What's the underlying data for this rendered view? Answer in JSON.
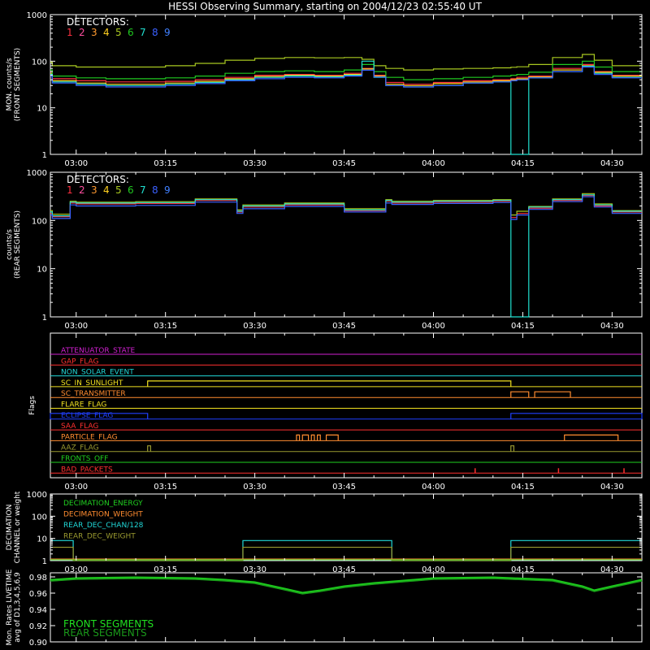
{
  "title": "HESSI Observing Summary, starting on 2004/12/23 02:55:40 UT",
  "time_ticks": [
    "03:00",
    "03:15",
    "03:30",
    "03:45",
    "04:00",
    "04:15",
    "04:30"
  ],
  "colors": {
    "det": [
      "#ff3040",
      "#ff4fa0",
      "#ff9a30",
      "#ffd020",
      "#a8c820",
      "#20c820",
      "#20e0d0",
      "#3a60ff",
      "#4080ff"
    ],
    "axis": "#ffffff"
  },
  "detector_panels": [
    {
      "ylabel1": "MON. counts/s",
      "ylabel2": "(FRONT SEGMENTS)",
      "legend_title": "DETECTORS:",
      "legend_digits": [
        "1",
        "2",
        "3",
        "4",
        "5",
        "6",
        "7",
        "8",
        "9"
      ],
      "yticks": [
        "1",
        "10",
        "100",
        "1000"
      ]
    },
    {
      "ylabel1": "counts/s",
      "ylabel2": "(REAR SEGMENTS)",
      "legend_title": "DETECTORS:",
      "legend_digits": [
        "1",
        "2",
        "3",
        "4",
        "5",
        "6",
        "7",
        "8",
        "9"
      ],
      "yticks": [
        "1",
        "10",
        "100",
        "1000"
      ]
    }
  ],
  "flags_panel": {
    "ylabel": "Flags",
    "flags": [
      {
        "label": "ATTENUATOR_STATE",
        "color": "#d020d0"
      },
      {
        "label": "GAP_FLAG",
        "color": "#ff3030"
      },
      {
        "label": "NON_SOLAR_EVENT",
        "color": "#20d8d8"
      },
      {
        "label": "SC_IN_SUNLIGHT",
        "color": "#f0e020"
      },
      {
        "label": "SC_TRANSMITTER",
        "color": "#ff8c30"
      },
      {
        "label": "FLARE_FLAG",
        "color": "#f0e020"
      },
      {
        "label": "ECLIPSE_FLAG",
        "color": "#2040ff"
      },
      {
        "label": "SAA_FLAG",
        "color": "#ff3030"
      },
      {
        "label": "PARTICLE_FLAG",
        "color": "#ff8c30"
      },
      {
        "label": "AAZ_FLAG",
        "color": "#9a9a30"
      },
      {
        "label": "FRONTS_OFF",
        "color": "#20d020"
      },
      {
        "label": "BAD_PACKETS",
        "color": "#ff3030"
      }
    ]
  },
  "decimation_panel": {
    "ylabel1": "DECIMATION",
    "ylabel2": "CHANNEL or weight",
    "yticks": [
      "1",
      "10",
      "100",
      "1000"
    ],
    "legend": [
      {
        "label": "DECIMATION_ENERGY",
        "color": "#20d020"
      },
      {
        "label": "DECIMATION_WEIGHT",
        "color": "#ff8c30"
      },
      {
        "label": "REAR_DEC_CHAN/128",
        "color": "#20d8d8"
      },
      {
        "label": "REAR_DEC_WEIGHT",
        "color": "#9a9a30"
      }
    ]
  },
  "livetime_panel": {
    "ylabel1": "Mon. Rates LIVETIME",
    "ylabel2": "avg of D1,3,4,5,6,9",
    "yticks": [
      "0.90",
      "0.92",
      "0.94",
      "0.96",
      "0.98"
    ],
    "legend": [
      {
        "label": "FRONT SEGMENTS",
        "color": "#20e020"
      },
      {
        "label": "REAR SEGMENTS",
        "color": "#1a9a1a"
      }
    ]
  },
  "chart_data": [
    {
      "type": "line",
      "title": "HESSI Observing Summary, starting on 2004/12/23 02:55:40 UT",
      "ylabel": "MON. counts/s (FRONT SEGMENTS)",
      "ylog": true,
      "ylim": [
        1,
        1000
      ],
      "xlim": [
        "02:55:40",
        "04:35:00"
      ],
      "x": [
        "02:56",
        "03:00",
        "03:05",
        "03:10",
        "03:15",
        "03:20",
        "03:25",
        "03:30",
        "03:35",
        "03:40",
        "03:45",
        "03:48",
        "03:50",
        "03:52",
        "03:55",
        "04:00",
        "04:05",
        "04:10",
        "04:13",
        "04:14",
        "04:16",
        "04:20",
        "04:25",
        "04:27",
        "04:30",
        "04:35"
      ],
      "series": [
        {
          "name": "1",
          "values": [
            60,
            42,
            38,
            36,
            36,
            37,
            40,
            45,
            50,
            52,
            50,
            55,
            70,
            50,
            35,
            32,
            35,
            38,
            40,
            42,
            45,
            48,
            70,
            85,
            60,
            50
          ]
        },
        {
          "name": "4",
          "values": [
            55,
            38,
            34,
            32,
            32,
            34,
            37,
            42,
            47,
            50,
            48,
            52,
            68,
            48,
            32,
            30,
            33,
            36,
            38,
            40,
            42,
            46,
            65,
            80,
            58,
            48
          ]
        },
        {
          "name": "5",
          "values": [
            95,
            80,
            75,
            75,
            75,
            80,
            90,
            105,
            115,
            120,
            118,
            120,
            110,
            80,
            70,
            65,
            68,
            70,
            72,
            74,
            76,
            85,
            120,
            140,
            105,
            80
          ]
        },
        {
          "name": "6",
          "values": [
            65,
            48,
            44,
            42,
            42,
            44,
            48,
            55,
            60,
            62,
            60,
            65,
            85,
            60,
            45,
            40,
            42,
            45,
            48,
            50,
            52,
            58,
            85,
            100,
            75,
            60
          ]
        },
        {
          "name": "7",
          "values": [
            52,
            36,
            32,
            30,
            30,
            32,
            35,
            40,
            45,
            48,
            46,
            50,
            100,
            45,
            30,
            28,
            30,
            34,
            36,
            1,
            1,
            44,
            60,
            78,
            55,
            45
          ]
        },
        {
          "name": "8",
          "values": [
            48,
            34,
            30,
            28,
            28,
            30,
            33,
            38,
            42,
            45,
            44,
            48,
            64,
            46,
            30,
            28,
            30,
            34,
            36,
            38,
            40,
            44,
            60,
            75,
            52,
            44
          ]
        }
      ]
    },
    {
      "type": "line",
      "ylabel": "counts/s (REAR SEGMENTS)",
      "ylog": true,
      "ylim": [
        1,
        1000
      ],
      "xlim": [
        "02:55:40",
        "04:35:00"
      ],
      "x": [
        "02:56",
        "02:59",
        "03:00",
        "03:10",
        "03:20",
        "03:27",
        "03:28",
        "03:35",
        "03:45",
        "03:52",
        "03:53",
        "04:00",
        "04:10",
        "04:13",
        "04:14",
        "04:16",
        "04:20",
        "04:25",
        "04:27",
        "04:30",
        "04:35"
      ],
      "series": [
        {
          "name": "1",
          "values": [
            140,
            120,
            230,
            220,
            225,
            260,
            150,
            190,
            210,
            160,
            250,
            230,
            240,
            250,
            115,
            140,
            180,
            260,
            330,
            200,
            150
          ]
        },
        {
          "name": "5",
          "values": [
            160,
            135,
            250,
            240,
            245,
            280,
            165,
            210,
            230,
            175,
            270,
            250,
            260,
            270,
            130,
            155,
            195,
            280,
            360,
            220,
            160
          ]
        },
        {
          "name": "7",
          "values": [
            150,
            125,
            240,
            230,
            235,
            270,
            155,
            200,
            220,
            165,
            260,
            240,
            250,
            260,
            1,
            1,
            190,
            270,
            340,
            210,
            155
          ]
        },
        {
          "name": "8",
          "values": [
            130,
            110,
            210,
            200,
            205,
            240,
            140,
            175,
            195,
            150,
            230,
            215,
            225,
            235,
            105,
            130,
            170,
            245,
            310,
            190,
            140
          ]
        }
      ]
    },
    {
      "type": "line",
      "ylabel": "Flags",
      "xlim": [
        "02:55:40",
        "04:35:00"
      ],
      "series": [
        {
          "name": "SC_IN_SUNLIGHT",
          "on": [
            [
              "03:12",
              "04:13"
            ]
          ]
        },
        {
          "name": "SC_TRANSMITTER",
          "on": [
            [
              "04:13",
              "04:16"
            ],
            [
              "04:17",
              "04:23"
            ]
          ]
        },
        {
          "name": "ECLIPSE_FLAG",
          "on": [
            [
              "02:55:40",
              "03:12"
            ],
            [
              "04:13",
              "04:35"
            ]
          ]
        },
        {
          "name": "PARTICLE_FLAG",
          "on": [
            [
              "03:37",
              "03:37:30"
            ],
            [
              "03:38",
              "03:39"
            ],
            [
              "03:39:30",
              "03:40"
            ],
            [
              "03:40:30",
              "03:41"
            ],
            [
              "03:42",
              "03:44"
            ],
            [
              "04:22",
              "04:31"
            ]
          ]
        },
        {
          "name": "AAZ_FLAG",
          "on": [
            [
              "03:12",
              "03:12:30"
            ],
            [
              "04:13",
              "04:13:30"
            ]
          ]
        },
        {
          "name": "BAD_PACKETS",
          "spikes": [
            "04:07",
            "04:21",
            "04:32"
          ]
        }
      ]
    },
    {
      "type": "line",
      "ylabel": "DECIMATION CHANNEL or weight",
      "ylog": true,
      "ylim": [
        1,
        1000
      ],
      "xlim": [
        "02:55:40",
        "04:35:00"
      ],
      "series": [
        {
          "name": "REAR_DEC_CHAN/128",
          "steps": [
            [
              "02:55:40",
              "02:59:30",
              8
            ],
            [
              "02:59:30",
              "03:28",
              1
            ],
            [
              "03:28",
              "03:53",
              8
            ],
            [
              "03:53",
              "04:13",
              1
            ],
            [
              "04:13",
              "04:35",
              8
            ]
          ]
        },
        {
          "name": "REAR_DEC_WEIGHT",
          "steps": [
            [
              "02:55:40",
              "02:59:30",
              4
            ],
            [
              "02:59:30",
              "03:28",
              1
            ],
            [
              "03:28",
              "03:53",
              4
            ],
            [
              "03:53",
              "04:13",
              1
            ],
            [
              "04:13",
              "04:35",
              4
            ]
          ]
        }
      ]
    },
    {
      "type": "line",
      "ylabel": "Mon. Rates LIVETIME avg of D1,3,4,5,6,9",
      "ylim": [
        0.9,
        0.98
      ],
      "xlim": [
        "02:55:40",
        "04:35:00"
      ],
      "x": [
        "02:56",
        "03:00",
        "03:10",
        "03:20",
        "03:25",
        "03:30",
        "03:35",
        "03:38",
        "03:41",
        "03:45",
        "03:50",
        "04:00",
        "04:10",
        "04:20",
        "04:25",
        "04:27",
        "04:30",
        "04:35"
      ],
      "series": [
        {
          "name": "FRONT SEGMENTS",
          "values": [
            0.976,
            0.978,
            0.979,
            0.978,
            0.976,
            0.973,
            0.965,
            0.96,
            0.963,
            0.968,
            0.972,
            0.978,
            0.979,
            0.976,
            0.968,
            0.963,
            0.968,
            0.976
          ]
        },
        {
          "name": "REAR SEGMENTS",
          "values": [
            0.975,
            0.977,
            0.978,
            0.977,
            0.975,
            0.972,
            0.964,
            0.959,
            0.962,
            0.967,
            0.971,
            0.977,
            0.978,
            0.975,
            0.967,
            0.962,
            0.967,
            0.975
          ]
        }
      ]
    }
  ]
}
